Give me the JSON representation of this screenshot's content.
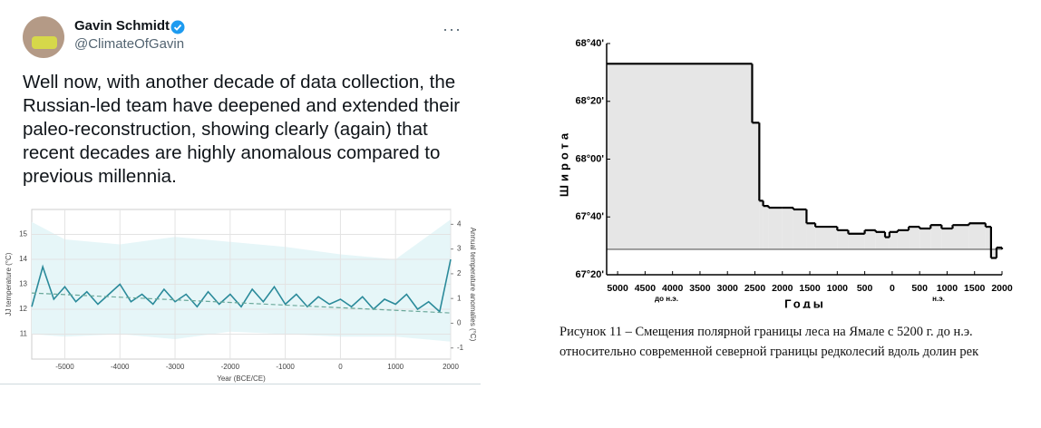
{
  "tweet": {
    "name": "Gavin Schmidt",
    "handle": "@ClimateOfGavin",
    "text": "Well now, with another decade of data collection, the Russian-led team have deepened and extended their paleo-reconstruction, showing clearly (again) that recent decades are highly anomalous compared to previous millennia."
  },
  "figure_caption": [
    "Рисунок 11 – Смещения полярной границы леса на Ямале с 5200 г. до н.э.",
    "относительно современной северной границы редколесий вдоль долин рек"
  ],
  "chart_data": [
    {
      "type": "line",
      "xlabel": "Year (BCE/CE)",
      "ylabel": "JJ temperature (°C)",
      "y2label": "Annual temperature anomalies (°C)",
      "xlim": [
        -5600,
        2000
      ],
      "xticks": [
        -5000,
        -4000,
        -3000,
        -2000,
        -1000,
        0,
        1000,
        2000
      ],
      "ylim": [
        10,
        16
      ],
      "yticks": [
        11,
        12,
        13,
        14,
        15
      ],
      "y2lim": [
        -1.45,
        4.6
      ],
      "y2ticks": [
        -1,
        0,
        1,
        2,
        3,
        4
      ],
      "grid": true,
      "band": {
        "color": "#e6f6f8",
        "x": [
          -5600,
          -5000,
          -4000,
          -3000,
          -2000,
          -1000,
          0,
          1000,
          2000
        ],
        "upper": [
          15.5,
          14.8,
          14.6,
          14.9,
          14.7,
          14.5,
          14.2,
          14.0,
          15.6
        ],
        "lower": [
          11.0,
          10.9,
          11.0,
          10.8,
          11.1,
          11.0,
          10.9,
          10.9,
          10.7
        ]
      },
      "series": [
        {
          "color": "#2a8a9a",
          "x": [
            -5600,
            -5400,
            -5200,
            -5000,
            -4800,
            -4600,
            -4400,
            -4200,
            -4000,
            -3800,
            -3600,
            -3400,
            -3200,
            -3000,
            -2800,
            -2600,
            -2400,
            -2200,
            -2000,
            -1800,
            -1600,
            -1400,
            -1200,
            -1000,
            -800,
            -600,
            -400,
            -200,
            0,
            200,
            400,
            600,
            800,
            1000,
            1200,
            1400,
            1600,
            1800,
            2000
          ],
          "values": [
            12.1,
            13.7,
            12.4,
            12.9,
            12.3,
            12.7,
            12.2,
            12.6,
            13.0,
            12.3,
            12.6,
            12.2,
            12.8,
            12.3,
            12.6,
            12.1,
            12.7,
            12.2,
            12.6,
            12.1,
            12.8,
            12.3,
            12.9,
            12.2,
            12.6,
            12.1,
            12.5,
            12.2,
            12.4,
            12.1,
            12.5,
            12.0,
            12.4,
            12.2,
            12.6,
            12.0,
            12.3,
            11.9,
            14.0
          ]
        },
        {
          "color": "#6aa89a",
          "dashed": true,
          "x": [
            -5600,
            2000
          ],
          "values": [
            12.65,
            11.85
          ]
        }
      ]
    },
    {
      "type": "step",
      "xlabel": "Годы",
      "ylabel": "Широта",
      "annotations": [
        "до н.э.",
        "н.э."
      ],
      "xlim": [
        -5200,
        2000
      ],
      "xticks": [
        {
          "value": -5000,
          "label": "5000"
        },
        {
          "value": -4500,
          "label": "4500"
        },
        {
          "value": -4000,
          "label": "4000"
        },
        {
          "value": -3500,
          "label": "3500"
        },
        {
          "value": -3000,
          "label": "3000"
        },
        {
          "value": -2500,
          "label": "2500"
        },
        {
          "value": -2000,
          "label": "2000"
        },
        {
          "value": -1500,
          "label": "1500"
        },
        {
          "value": -1000,
          "label": "1000"
        },
        {
          "value": -500,
          "label": "500"
        },
        0,
        500,
        1000,
        1500,
        2000
      ],
      "ylim": [
        67.3333,
        68.6667
      ],
      "yticks": [
        {
          "value": 67.3333,
          "label": "67°20'"
        },
        {
          "value": 67.6667,
          "label": "67°40'"
        },
        {
          "value": 68,
          "label": "68°00'"
        },
        {
          "value": 68.3333,
          "label": "68°20'"
        },
        {
          "value": 68.6667,
          "label": "68°40'"
        }
      ],
      "reference": 67.48,
      "color": "#000000",
      "fill": "#e6e6e6",
      "x": [
        -5200,
        -2550,
        -2420,
        -2350,
        -2250,
        -2000,
        -1800,
        -1560,
        -1400,
        -1000,
        -800,
        -500,
        -300,
        -130,
        -50,
        100,
        300,
        500,
        700,
        900,
        1100,
        1400,
        1700,
        1800,
        1900,
        2000
      ],
      "values": [
        68.55,
        68.21,
        67.76,
        67.73,
        67.72,
        67.72,
        67.71,
        67.63,
        67.61,
        67.59,
        67.57,
        67.59,
        67.58,
        67.55,
        67.58,
        67.59,
        67.61,
        67.6,
        67.62,
        67.6,
        67.62,
        67.63,
        67.61,
        67.43,
        67.49,
        67.48
      ]
    }
  ]
}
